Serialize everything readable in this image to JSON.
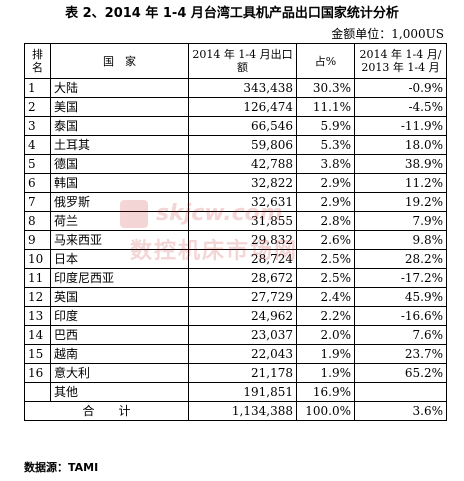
{
  "title": "表 2、2014 年 1-4 月台湾工具机产品出口国家统计分析",
  "unit": "金额单位：1,000US",
  "header": {
    "rank": "排名",
    "country": "国　家",
    "value": "2014 年 1-4 月出口额",
    "share": "占%",
    "growth": "2014 年 1-4 月/ 2013 年 1-4 月"
  },
  "rows": [
    {
      "rank": "1",
      "country": "大陆",
      "value": "343,438",
      "share": "30.3%",
      "growth": "-0.9%"
    },
    {
      "rank": "2",
      "country": "美国",
      "value": "126,474",
      "share": "11.1%",
      "growth": "-4.5%"
    },
    {
      "rank": "3",
      "country": "泰国",
      "value": "66,546",
      "share": "5.9%",
      "growth": "-11.9%"
    },
    {
      "rank": "4",
      "country": "土耳其",
      "value": "59,806",
      "share": "5.3%",
      "growth": "18.0%"
    },
    {
      "rank": "5",
      "country": "德国",
      "value": "42,788",
      "share": "3.8%",
      "growth": "38.9%"
    },
    {
      "rank": "6",
      "country": "韩国",
      "value": "32,822",
      "share": "2.9%",
      "growth": "11.2%"
    },
    {
      "rank": "7",
      "country": "俄罗斯",
      "value": "32,631",
      "share": "2.9%",
      "growth": "19.2%"
    },
    {
      "rank": "8",
      "country": "荷兰",
      "value": "31,855",
      "share": "2.8%",
      "growth": "7.9%"
    },
    {
      "rank": "9",
      "country": "马来西亚",
      "value": "29,832",
      "share": "2.6%",
      "growth": "9.8%"
    },
    {
      "rank": "10",
      "country": "日本",
      "value": "28,724",
      "share": "2.5%",
      "growth": "28.2%"
    },
    {
      "rank": "11",
      "country": "印度尼西亚",
      "value": "28,672",
      "share": "2.5%",
      "growth": "-17.2%"
    },
    {
      "rank": "12",
      "country": "英国",
      "value": "27,729",
      "share": "2.4%",
      "growth": "45.9%"
    },
    {
      "rank": "13",
      "country": "印度",
      "value": "24,962",
      "share": "2.2%",
      "growth": "-16.6%"
    },
    {
      "rank": "14",
      "country": "巴西",
      "value": "23,037",
      "share": "2.0%",
      "growth": "7.6%"
    },
    {
      "rank": "15",
      "country": "越南",
      "value": "22,043",
      "share": "1.9%",
      "growth": "23.7%"
    },
    {
      "rank": "16",
      "country": "意大利",
      "value": "21,178",
      "share": "1.9%",
      "growth": "65.2%"
    }
  ],
  "others": {
    "label": "其他",
    "value": "191,851",
    "share": "16.9%",
    "growth": ""
  },
  "total": {
    "label": "合　　计",
    "value": "1,134,388",
    "share": "100.0%",
    "growth": "3.6%"
  },
  "source": "数据源：TAMI",
  "watermark": {
    "line1": "skjcw.com",
    "line2": "数控机床市场网",
    "color": "#c81e1e"
  }
}
